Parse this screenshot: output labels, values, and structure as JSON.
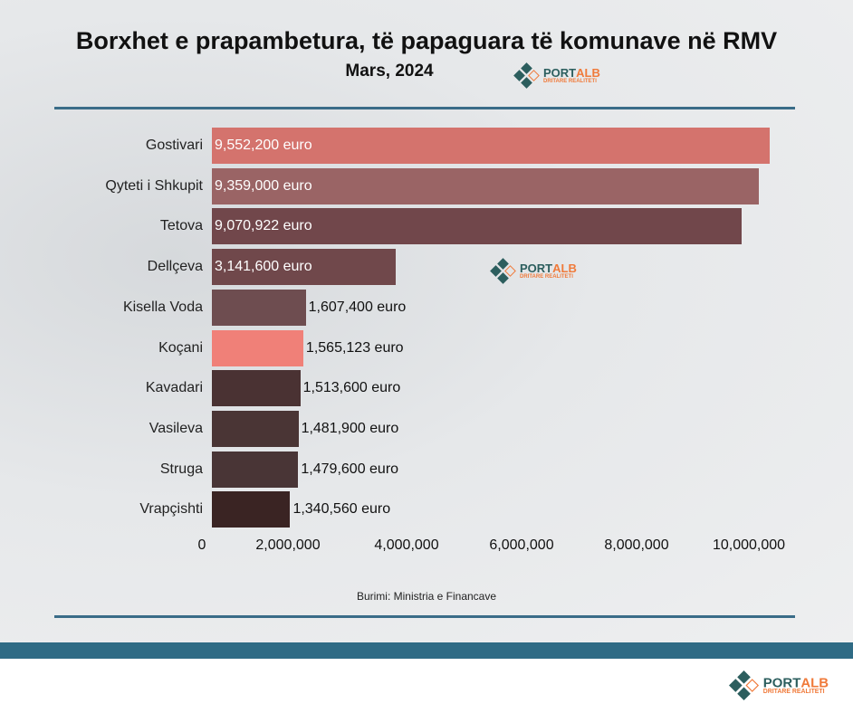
{
  "title": "Borxhet e prapambetura, të papaguara të komunave në RMV",
  "subtitle": "Mars, 2024",
  "logo": {
    "part1": "PORT",
    "part2": "ALB",
    "tagline": "DRITARE REALITETI"
  },
  "source": "Burimi: Ministria e Financave",
  "chart_data": {
    "type": "bar",
    "orientation": "horizontal",
    "title": "Borxhet e prapambetura, të papaguara të komunave në RMV",
    "categories": [
      "Gostivari",
      "Qyteti i Shkupit",
      "Tetova",
      "Dellçeva",
      "Kisella Voda",
      "Koçani",
      "Kavadari",
      "Vasileva",
      "Struga",
      "Vrapçishti"
    ],
    "values": [
      9552200,
      9359000,
      9070922,
      3141600,
      1607400,
      1565123,
      1513600,
      1481900,
      1479600,
      1340560
    ],
    "labels": [
      "9,552,200 euro",
      "9,359,000 euro",
      "9,070,922 euro",
      "3,141,600 euro",
      "1,607,400 euro",
      "1,565,123 euro",
      "1,513,600 euro",
      "1,481,900 euro",
      "1,479,600 euro",
      "1,340,560 euro"
    ],
    "colors": [
      "#d4736d",
      "#9a6465",
      "#71474b",
      "#70484b",
      "#6e4d50",
      "#f08078",
      "#4a3233",
      "#4a3535",
      "#493536",
      "#3a2423"
    ],
    "ticks": [
      0,
      2000000,
      4000000,
      6000000,
      8000000,
      10000000
    ],
    "tick_labels": [
      "0",
      "2,000,000",
      "4,000,000",
      "6,000,000",
      "8,000,000",
      "10,000,000"
    ],
    "xlim": [
      0,
      10000000
    ]
  }
}
